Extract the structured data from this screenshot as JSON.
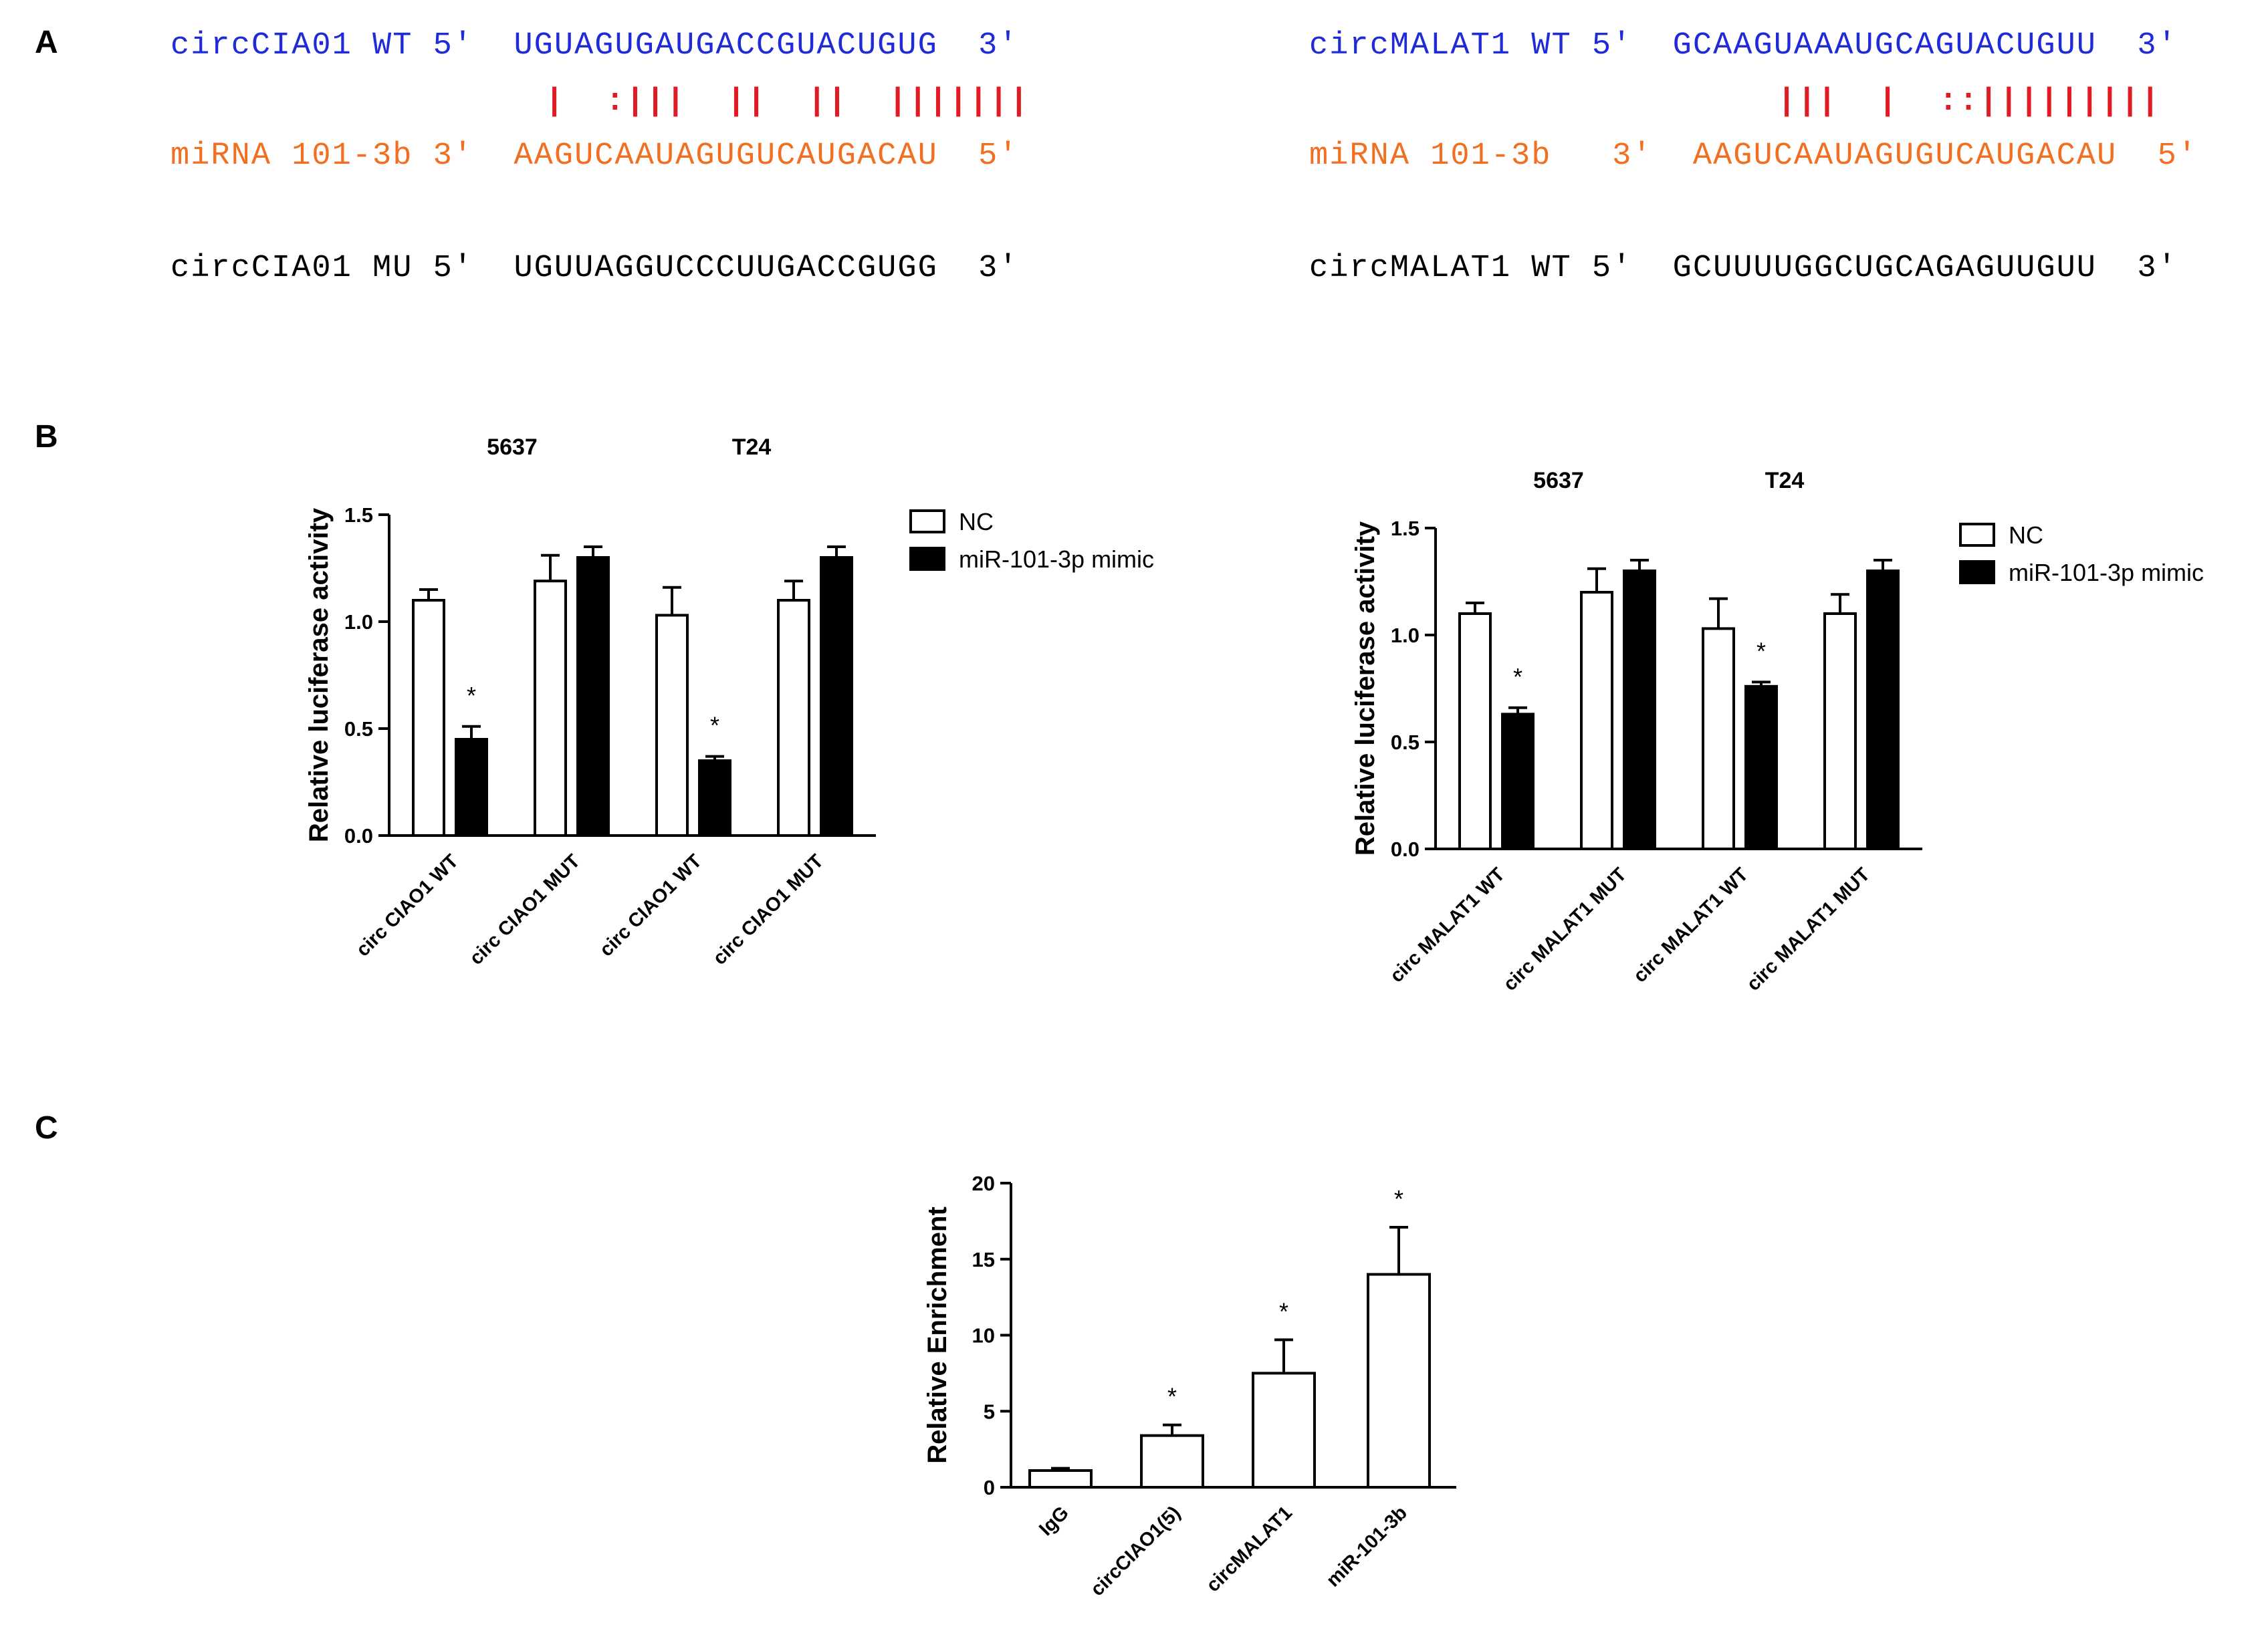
{
  "panels": {
    "a": "A",
    "b": "B",
    "c": "C"
  },
  "colors": {
    "blue": "#1f2ad8",
    "orange": "#f26f21",
    "red": "#e01b24",
    "fill_nc": "#ffffff",
    "fill_mimic": "#000000"
  },
  "panel_a": {
    "left": {
      "wt": "circCIA01 WT 5'  UGUAGUGAUGACCGUACUGUG  3'",
      "pairs": "|  :|||  ||  ||  |||||||",
      "mirna": "miRNA 101-3b 3'  AAGUCAAUAGUGUCAUGACAU  5'",
      "mu": "circCIA01 MU 5'  UGUUAGGUCCCUUGACCGUGG  3'"
    },
    "right": {
      "wt": "circMALAT1 WT 5'  GCAAGUAAAUGCAGUACUGUU  3'",
      "pairs": "|||  |  ::|||||||||",
      "mirna": "miRNA 101-3b   3'  AAGUCAAUAGUGUCAUGACAU  5'",
      "mu": "circMALAT1 WT 5'  GCUUUUGGCUGCAGAGUUGUU  3'"
    }
  },
  "chart_data": [
    {
      "type": "bar",
      "panel": "B-left",
      "group_labels": [
        "5637",
        "T24"
      ],
      "categories": [
        "circ CIAO1 WT",
        "circ CIAO1 MUT",
        "circ CIAO1 WT",
        "circ CIAO1 MUT"
      ],
      "series": [
        {
          "name": "NC",
          "values": [
            1.1,
            1.19,
            1.03,
            1.1
          ],
          "errors": [
            0.05,
            0.12,
            0.13,
            0.09
          ]
        },
        {
          "name": "miR-101-3p mimic",
          "values": [
            0.45,
            1.3,
            0.35,
            1.3
          ],
          "errors": [
            0.06,
            0.05,
            0.02,
            0.05
          ]
        }
      ],
      "significance": [
        "*",
        "",
        "*",
        ""
      ],
      "ylabel": "Relative luciferase activity",
      "ylim": [
        0,
        1.5
      ],
      "yticks": [
        "0.0",
        "0.5",
        "1.0",
        "1.5"
      ],
      "legend": "top-right"
    },
    {
      "type": "bar",
      "panel": "B-right",
      "group_labels": [
        "5637",
        "T24"
      ],
      "categories": [
        "circ MALAT1 WT",
        "circ MALAT1 MUT",
        "circ MALAT1 WT",
        "circ MALAT1 MUT"
      ],
      "series": [
        {
          "name": "NC",
          "values": [
            1.1,
            1.2,
            1.03,
            1.1
          ],
          "errors": [
            0.05,
            0.11,
            0.14,
            0.09
          ]
        },
        {
          "name": "miR-101-3p mimic",
          "values": [
            0.63,
            1.3,
            0.76,
            1.3
          ],
          "errors": [
            0.03,
            0.05,
            0.02,
            0.05
          ]
        }
      ],
      "significance": [
        "*",
        "",
        "*",
        ""
      ],
      "ylabel": "Relative luciferase activity",
      "ylim": [
        0,
        1.5
      ],
      "yticks": [
        "0.0",
        "0.5",
        "1.0",
        "1.5"
      ],
      "legend": "top-right"
    },
    {
      "type": "bar",
      "panel": "C",
      "categories": [
        "IgG",
        "circCIAO1(5)",
        "circMALAT1",
        "miR-101-3b"
      ],
      "series": [
        {
          "values": [
            1.1,
            3.4,
            7.5,
            14.0
          ],
          "errors": [
            0.15,
            0.7,
            2.2,
            3.1
          ]
        }
      ],
      "significance": [
        "",
        "*",
        "*",
        "*"
      ],
      "ylabel": "Relative Enrichment",
      "ylim": [
        0,
        20
      ],
      "yticks": [
        "0",
        "5",
        "10",
        "15",
        "20"
      ]
    }
  ]
}
